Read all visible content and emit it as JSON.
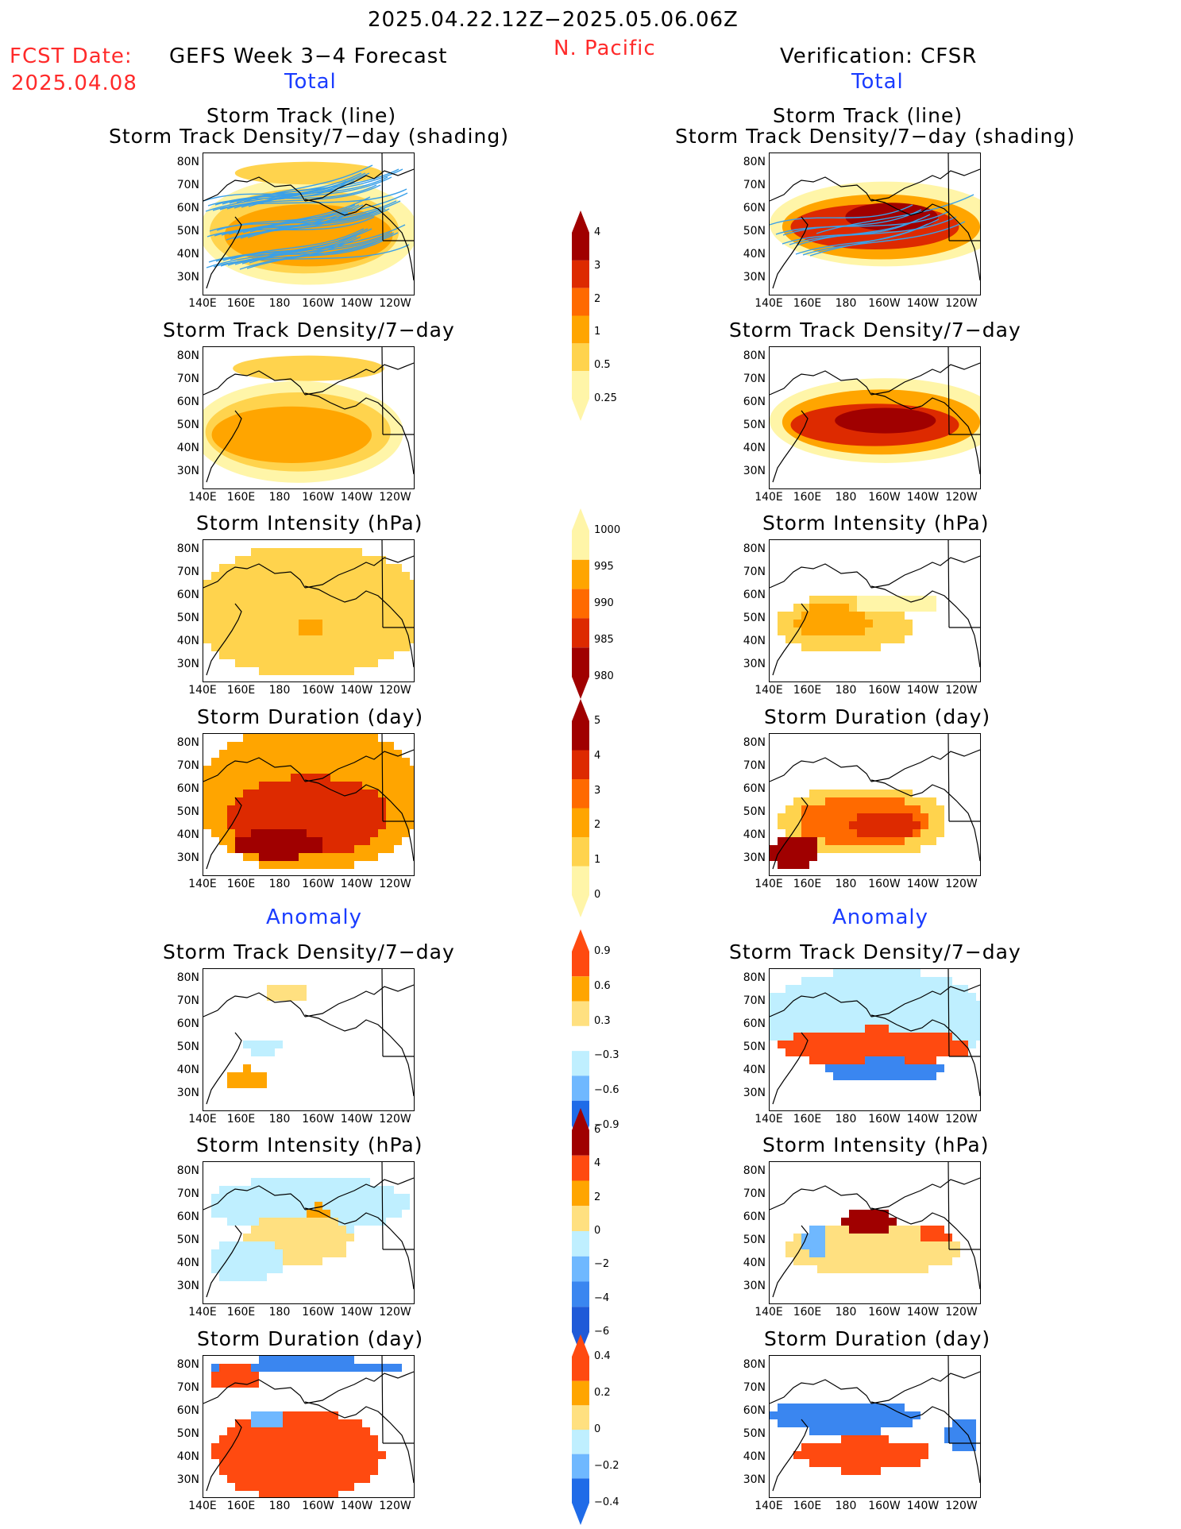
{
  "header": {
    "date_range": "2025.04.22.12Z−2025.05.06.06Z",
    "region": "N. Pacific",
    "fcst_label": "FCST Date:",
    "fcst_date": "2025.04.08",
    "left_title": "GEFS Week 3−4 Forecast",
    "right_title": "Verification: CFSR",
    "total_label": "Total",
    "anomaly_label": "Anomaly"
  },
  "axes": {
    "lat_ticks": [
      "80N",
      "70N",
      "60N",
      "50N",
      "40N",
      "30N"
    ],
    "lon_ticks": [
      "140E",
      "160E",
      "180",
      "160W",
      "140W",
      "120W"
    ]
  },
  "panels": {
    "track_line_title1": "Storm Track (line)",
    "track_line_title2": "Storm Track Density/7−day (shading)",
    "density_title": "Storm Track Density/7−day",
    "intensity_title": "Storm Intensity (hPa)",
    "duration_title": "Storm Duration (day)"
  },
  "colorbars": {
    "density_total": {
      "levels": [
        "4",
        "3",
        "2",
        "1",
        "0.5",
        "0.25"
      ],
      "colors": [
        "#a00000",
        "#dd2a00",
        "#ff6a00",
        "#ffa500",
        "#ffd34d",
        "#fff5a8"
      ]
    },
    "intensity_total": {
      "levels": [
        "1000",
        "995",
        "990",
        "985",
        "980"
      ],
      "colors": [
        "#fff5a8",
        "#ffa500",
        "#ff6a00",
        "#dd2a00",
        "#a00000"
      ]
    },
    "duration_total": {
      "levels": [
        "5",
        "4",
        "3",
        "2",
        "1",
        "0"
      ],
      "colors": [
        "#a00000",
        "#dd2a00",
        "#ff6a00",
        "#ffa500",
        "#ffd34d",
        "#fff5a8"
      ]
    },
    "density_anom": {
      "levels": [
        "0.9",
        "0.6",
        "0.3",
        "−0.3",
        "−0.6",
        "−0.9"
      ],
      "colors": [
        "#ff4a10",
        "#ffa500",
        "#ffe080",
        "#ffffff",
        "#bfefff",
        "#6fb8ff",
        "#1f6be8"
      ]
    },
    "intensity_anom": {
      "levels": [
        "6",
        "4",
        "2",
        "0",
        "−2",
        "−4",
        "−6"
      ],
      "colors": [
        "#a00000",
        "#ff4a10",
        "#ffa500",
        "#ffe080",
        "#bfefff",
        "#6fb8ff",
        "#3a86f0",
        "#1f5ad8"
      ]
    },
    "duration_anom": {
      "levels": [
        "0.4",
        "0.2",
        "0",
        "−0.2",
        "−0.4"
      ],
      "colors": [
        "#ff4a10",
        "#ffa500",
        "#ffe080",
        "#bfefff",
        "#6fb8ff",
        "#1f6be8"
      ]
    }
  }
}
